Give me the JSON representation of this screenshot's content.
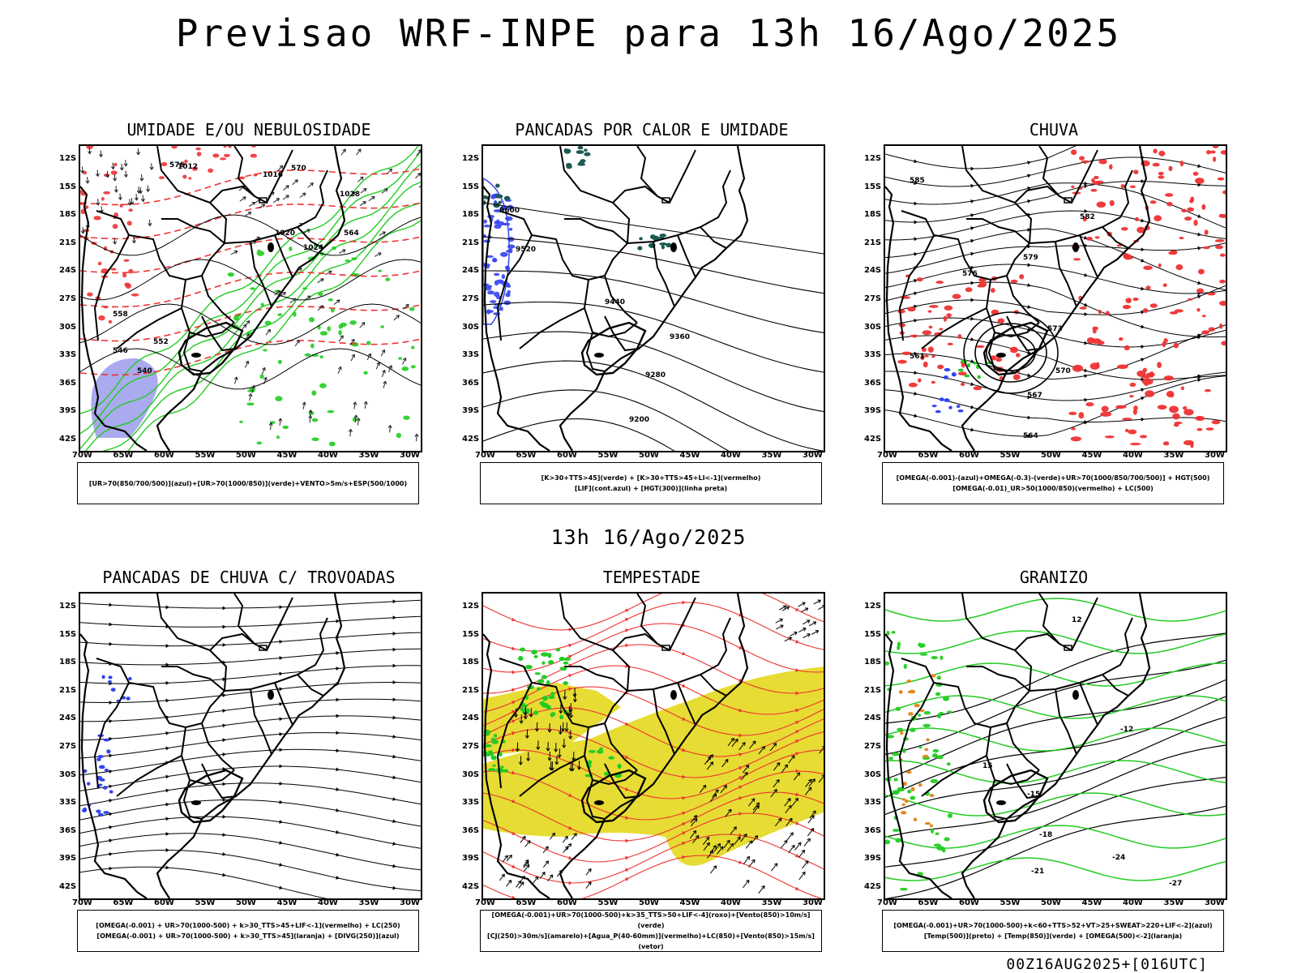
{
  "header": {
    "title": "Previsao WRF-INPE  para 13h 16/Ago/2025"
  },
  "middle_label": "13h 16/Ago/2025",
  "footer": "00Z16AUG2025+[016UTC]",
  "axes": {
    "lat_labels": [
      "12S",
      "15S",
      "18S",
      "21S",
      "24S",
      "27S",
      "30S",
      "33S",
      "36S",
      "39S",
      "42S"
    ],
    "lon_labels": [
      "70W",
      "65W",
      "60W",
      "55W",
      "50W",
      "45W",
      "40W",
      "35W",
      "30W"
    ]
  },
  "colors": {
    "green": "#22cc22",
    "red": "#ee3333",
    "blue": "#3344ee",
    "lavender": "#aaaaee",
    "yellow": "#e6dc33",
    "teal": "#1c5a52",
    "orange": "#e08a20"
  },
  "panels": [
    {
      "id": "umidade",
      "title": "UMIDADE E/OU NEBULOSIDADE",
      "legend": [
        "[UR>70(850/700/500)](azul)+[UR>70(1000/850)](verde)+VENTO>5m/s+ESP(500/1000)"
      ],
      "contour_labels": [
        "1012",
        "1016",
        "1020",
        "1024",
        "1028",
        "576",
        "570",
        "564",
        "558",
        "552",
        "546",
        "540"
      ]
    },
    {
      "id": "pancadas-calor",
      "title": "PANCADAS POR CALOR E UMIDADE",
      "legend": [
        "[K>30+TTS>45](verde) + [K>30+TTS>45+LI<-1](vermelho)",
        "[LIF](cont.azul) + [HGT(300)](linha preta)"
      ],
      "contour_labels": [
        "9600",
        "9520",
        "9440",
        "9360",
        "9280",
        "9200"
      ]
    },
    {
      "id": "chuva",
      "title": "CHUVA",
      "legend": [
        "[OMEGA(-0.001)-(azul)+OMEGA(-0.3)-(verde)+UR>70(1000/850/700/500)] + HGT(500)",
        "[OMEGA(-0.01)_UR>50(1000/850)(vermelho) + LC(500)"
      ],
      "contour_labels": [
        "585",
        "582",
        "579",
        "576",
        "573",
        "570",
        "567",
        "564",
        "561"
      ]
    },
    {
      "id": "trovoadas",
      "title": "PANCADAS DE CHUVA C/ TROVOADAS",
      "legend": [
        "[OMEGA(-0.001) + UR>70(1000-500) + k>30_TTS>45+LIF<-1](vermelho) + LC(250)",
        "[OMEGA(-0.001) + UR>70(1000-500) + k>30_TTS>45](laranja) + [DIVG(250)](azul)"
      ],
      "contour_labels": []
    },
    {
      "id": "tempestade",
      "title": "TEMPESTADE",
      "legend": [
        "[OMEGA(-0.001)+UR>70(1000-500)+k>35_TTS>50+LIF<-4](roxo)+[Vento(850)>10m/s](verde)",
        "[CJ(250)>30m/s](amarelo)+[Agua_P(40-60mm)](vermelho)+LC(850)+[Vento(850)>15m/s](vetor)"
      ],
      "contour_labels": []
    },
    {
      "id": "granizo",
      "title": "GRANIZO",
      "legend": [
        "[OMEGA(-0.001)+UR>70(1000-500)+k<60+TTS>52+VT>25+SWEAT>220+LIF<-2](azul)",
        "[Temp(500)](preto) + [Temp(850)](verde) + [OMEGA(500)<-2](laranja)"
      ],
      "contour_labels": [
        "-12",
        "-15",
        "-18",
        "-21",
        "-24",
        "-27",
        "12",
        "15"
      ]
    }
  ]
}
